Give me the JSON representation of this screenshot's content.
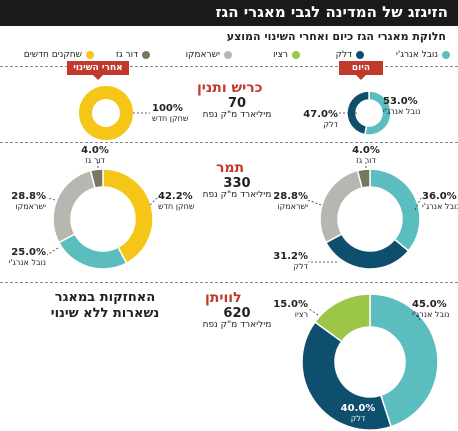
{
  "title": "הזיגזג של המדינה לגבי מאגרי הגז",
  "subtitle": "חלוקת מאגרי הגז כיום ואחרי השינוי המוצע",
  "legend": [
    {
      "label": "נובל אנרג'י",
      "color": "#5bbdbd"
    },
    {
      "label": "דלק",
      "color": "#0e4f6e"
    },
    {
      "label": "רציו",
      "color": "#9bc648"
    },
    {
      "label": "ישראמקו",
      "color": "#b7b7b1"
    },
    {
      "label": "דור גז",
      "color": "#7b7660"
    },
    {
      "label": "שחקנים חדשים",
      "color": "#f5c518"
    }
  ],
  "tags": {
    "today": "היום",
    "after": "אחרי השינוי"
  },
  "fields": {
    "karish": {
      "name": "כריש ותנין",
      "volume": "70",
      "unit": "מיליארד מ\"ק נפח"
    },
    "tamar": {
      "name": "תמר",
      "volume": "330",
      "unit": "מיליארד מ\"ק נפח"
    },
    "leviathan": {
      "name": "לוויתן",
      "volume": "620",
      "unit": "מיליארד מ\"ק נפח"
    }
  },
  "note": "האחזקות במאגר נשארות ללא שינוי",
  "chart_data": [
    {
      "type": "pie",
      "title": "כריש ותנין - היום",
      "series": [
        {
          "name": "נובל אנרג'י",
          "value": 53.0,
          "color": "#5bbdbd",
          "label": "53.0%"
        },
        {
          "name": "דלק",
          "value": 47.0,
          "color": "#0e4f6e",
          "label": "47.0%"
        }
      ]
    },
    {
      "type": "pie",
      "title": "כריש ותנין - אחרי השינוי",
      "series": [
        {
          "name": "שחקן חדש",
          "value": 100,
          "color": "#f5c518",
          "label": "100%"
        }
      ]
    },
    {
      "type": "pie",
      "title": "תמר - היום",
      "series": [
        {
          "name": "נובל אנרג'י",
          "value": 36.0,
          "color": "#5bbdbd",
          "label": "36.0%"
        },
        {
          "name": "דלק",
          "value": 31.2,
          "color": "#0e4f6e",
          "label": "31.2%"
        },
        {
          "name": "ישראמקו",
          "value": 28.8,
          "color": "#b7b7b1",
          "label": "28.8%"
        },
        {
          "name": "דור גז",
          "value": 4.0,
          "color": "#7b7660",
          "label": "4.0%"
        }
      ]
    },
    {
      "type": "pie",
      "title": "תמר - אחרי השינוי",
      "series": [
        {
          "name": "שחקן חדש",
          "value": 42.2,
          "color": "#f5c518",
          "label": "42.2%"
        },
        {
          "name": "נובל אנרג'י",
          "value": 25.0,
          "color": "#5bbdbd",
          "label": "25.0%"
        },
        {
          "name": "ישראמקו",
          "value": 28.8,
          "color": "#b7b7b1",
          "label": "28.8%"
        },
        {
          "name": "דור גז",
          "value": 4.0,
          "color": "#7b7660",
          "label": "4.0%"
        }
      ]
    },
    {
      "type": "pie",
      "title": "לוויתן",
      "series": [
        {
          "name": "נובל אנרג'י",
          "value": 45.0,
          "color": "#5bbdbd",
          "label": "45.0%"
        },
        {
          "name": "דלק",
          "value": 40.0,
          "color": "#0e4f6e",
          "label": "40.0%"
        },
        {
          "name": "רציו",
          "value": 15.0,
          "color": "#9bc648",
          "label": "15.0%"
        }
      ]
    }
  ]
}
